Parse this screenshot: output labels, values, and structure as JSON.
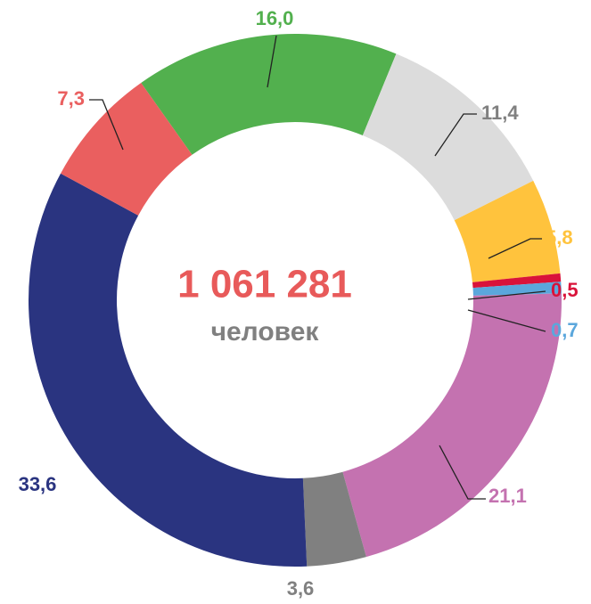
{
  "chart_data": {
    "type": "donut",
    "center_value": "1 061 281",
    "center_label": "человек",
    "categories": [
      null,
      null,
      null,
      null,
      null,
      null,
      null,
      null,
      null
    ],
    "values": [
      16.0,
      11.4,
      5.8,
      0.5,
      0.7,
      21.1,
      3.6,
      33.6,
      7.3
    ],
    "value_labels": [
      "16,0",
      "11,4",
      "5,8",
      "0,5",
      "0,7",
      "21,1",
      "3,6",
      "33,6",
      "7,3"
    ],
    "colors": [
      "#52b04e",
      "#dcdcdc",
      "#ffc33d",
      "#d9133a",
      "#5ba7dc",
      "#c472b0",
      "#808080",
      "#2a3480",
      "#ea5f5f"
    ],
    "label_colors": [
      "#52b04e",
      "#808080",
      "#ffc33d",
      "#d9133a",
      "#5ba7dc",
      "#c472b0",
      "#808080",
      "#2a3480",
      "#ea5f5f"
    ]
  }
}
